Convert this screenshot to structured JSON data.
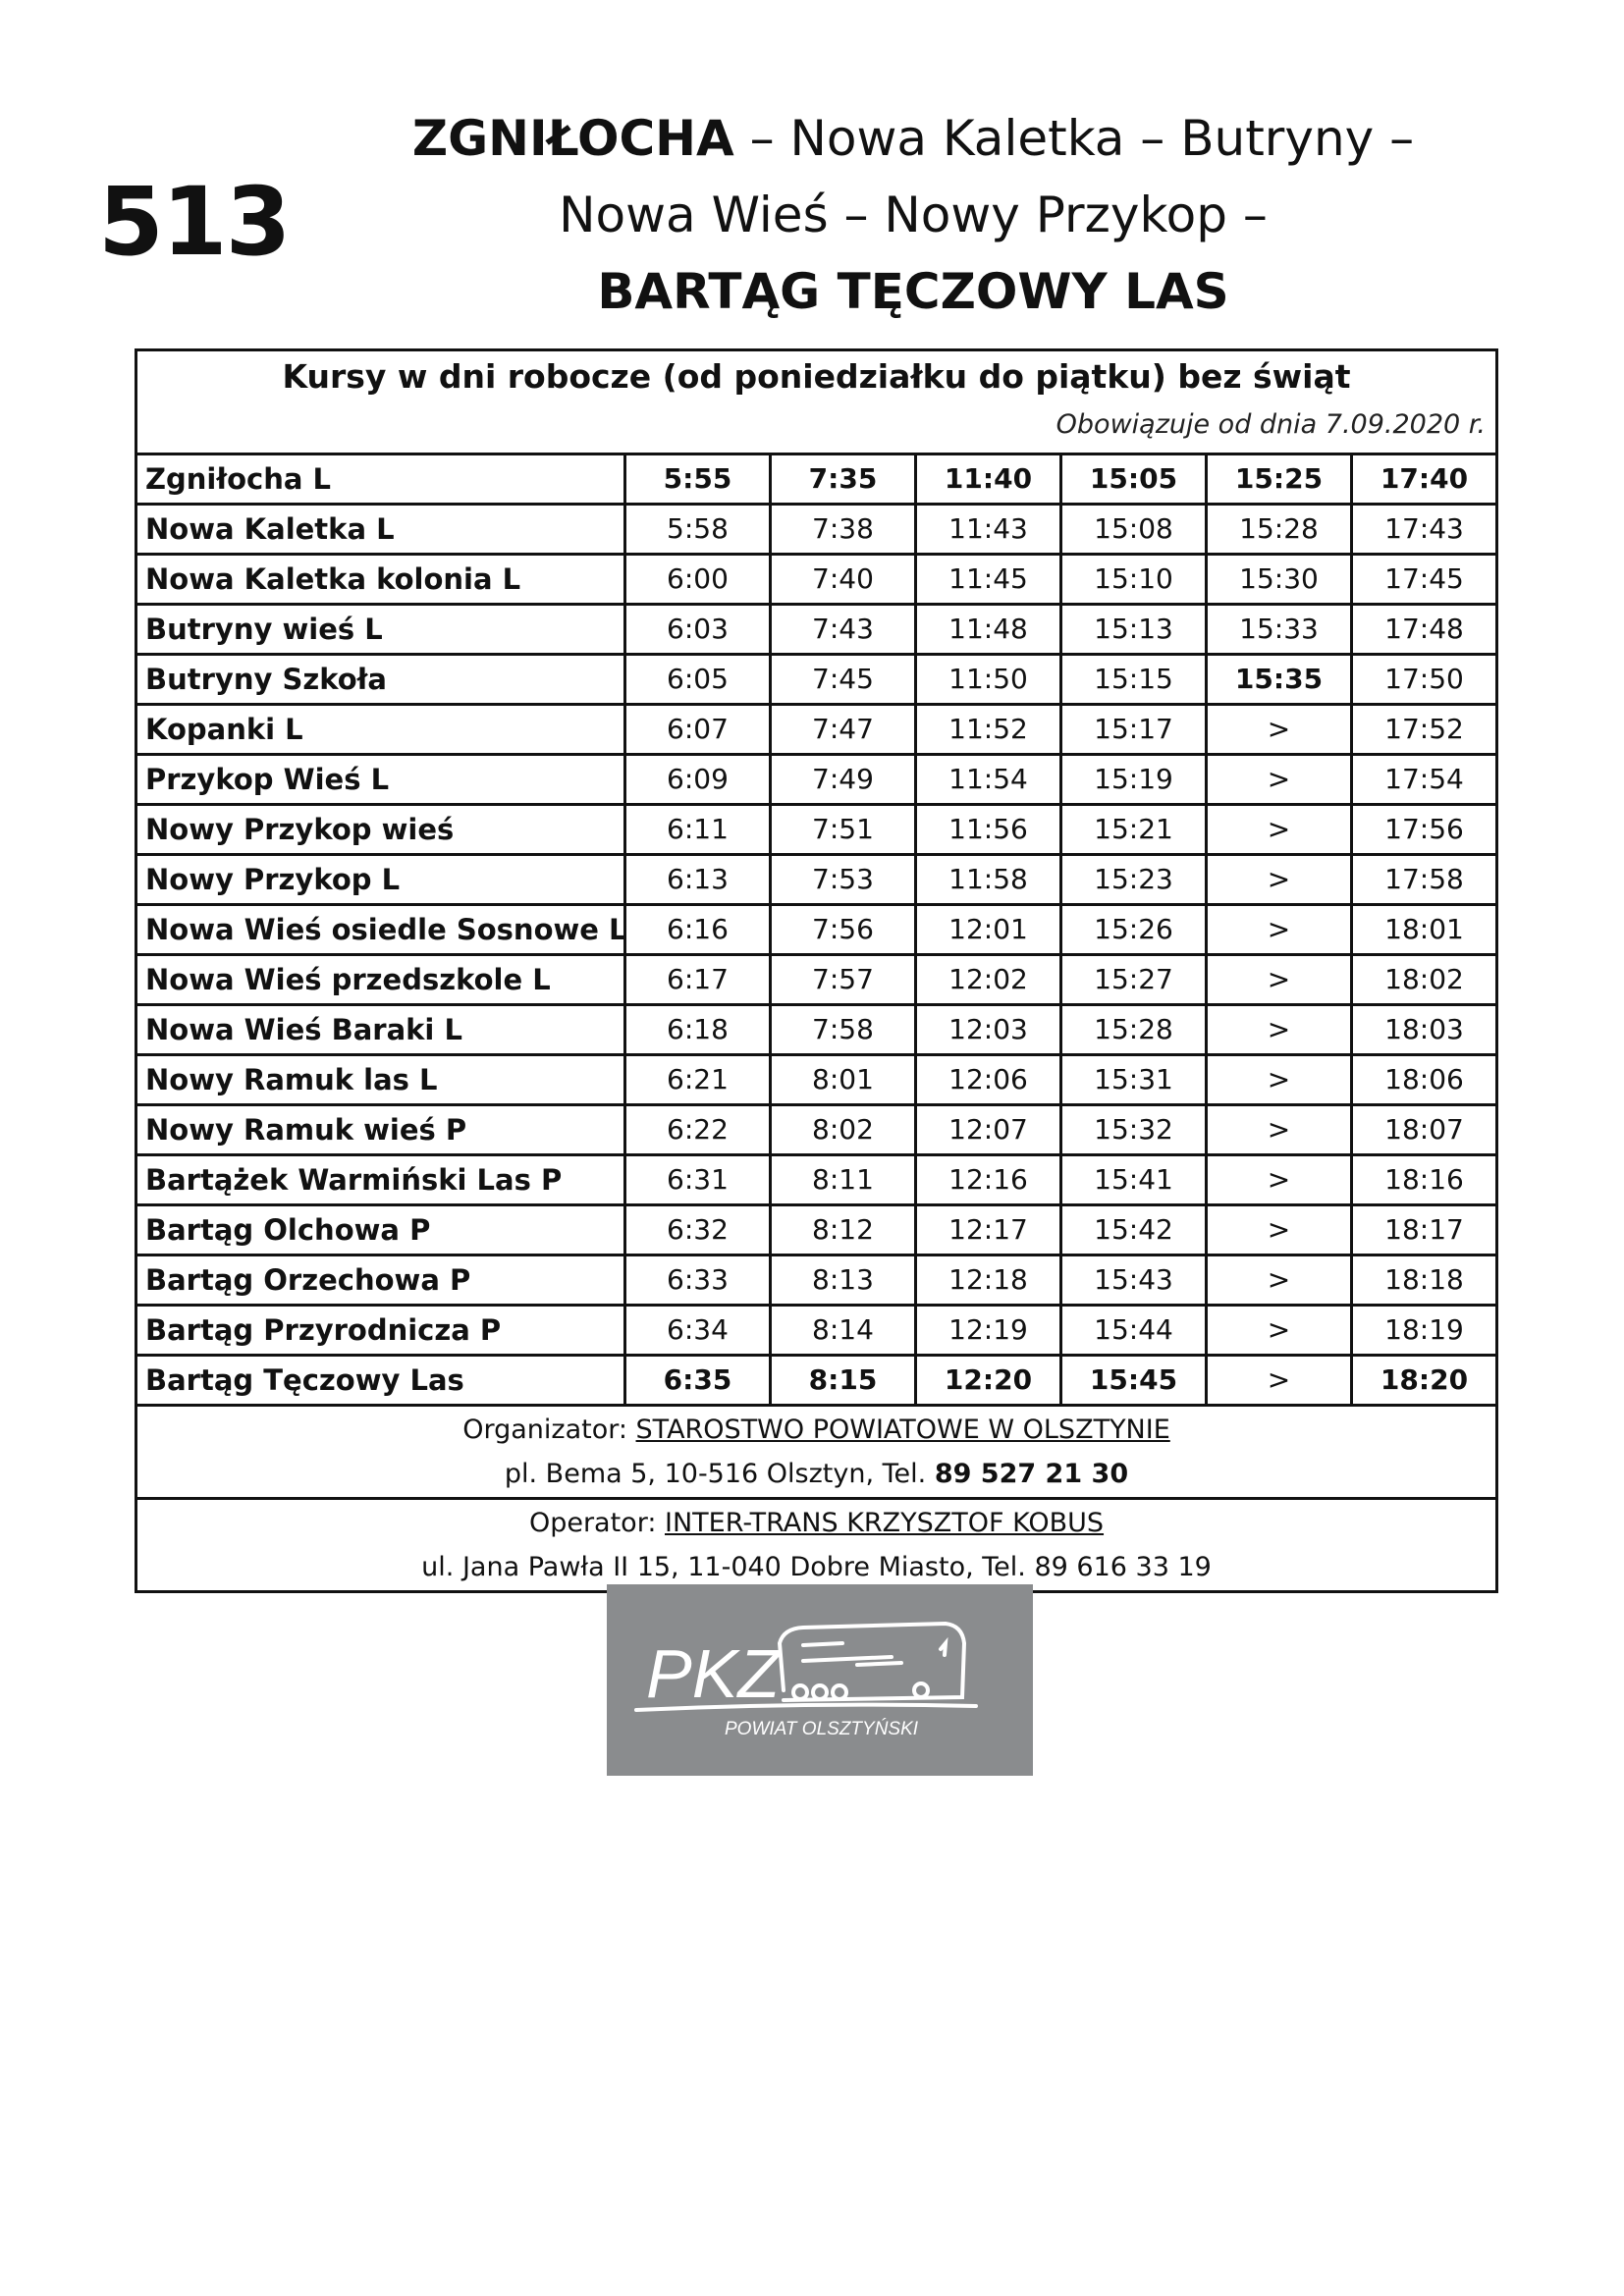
{
  "route_number": "513",
  "title": {
    "line1_bold": "ZGNIŁOCHA",
    "line1_rest": " – Nowa Kaletka – Butryny –",
    "line2": "Nowa Wieś – Nowy Przykop –",
    "line3": "BARTĄG TĘCZOWY LAS"
  },
  "table": {
    "heading": "Kursy w dni robocze (od poniedziałku do piątku) bez świąt",
    "valid_from": "Obowiązuje od dnia 7.09.2020 r.",
    "rows": [
      {
        "stop": "Zgniłocha L",
        "times": [
          "5:55",
          "7:35",
          "11:40",
          "15:05",
          "15:25",
          "17:40"
        ],
        "bold": [
          1,
          1,
          1,
          1,
          1,
          1
        ]
      },
      {
        "stop": "Nowa Kaletka L",
        "times": [
          "5:58",
          "7:38",
          "11:43",
          "15:08",
          "15:28",
          "17:43"
        ],
        "bold": [
          0,
          0,
          0,
          0,
          0,
          0
        ]
      },
      {
        "stop": "Nowa Kaletka kolonia L",
        "times": [
          "6:00",
          "7:40",
          "11:45",
          "15:10",
          "15:30",
          "17:45"
        ],
        "bold": [
          0,
          0,
          0,
          0,
          0,
          0
        ]
      },
      {
        "stop": "Butryny wieś L",
        "times": [
          "6:03",
          "7:43",
          "11:48",
          "15:13",
          "15:33",
          "17:48"
        ],
        "bold": [
          0,
          0,
          0,
          0,
          0,
          0
        ]
      },
      {
        "stop": "Butryny Szkoła",
        "times": [
          "6:05",
          "7:45",
          "11:50",
          "15:15",
          "15:35",
          "17:50"
        ],
        "bold": [
          0,
          0,
          0,
          0,
          1,
          0
        ]
      },
      {
        "stop": "Kopanki L",
        "times": [
          "6:07",
          "7:47",
          "11:52",
          "15:17",
          ">",
          "17:52"
        ],
        "bold": [
          0,
          0,
          0,
          0,
          0,
          0
        ]
      },
      {
        "stop": "Przykop Wieś L",
        "times": [
          "6:09",
          "7:49",
          "11:54",
          "15:19",
          ">",
          "17:54"
        ],
        "bold": [
          0,
          0,
          0,
          0,
          0,
          0
        ]
      },
      {
        "stop": "Nowy Przykop wieś",
        "times": [
          "6:11",
          "7:51",
          "11:56",
          "15:21",
          ">",
          "17:56"
        ],
        "bold": [
          0,
          0,
          0,
          0,
          0,
          0
        ]
      },
      {
        "stop": "Nowy Przykop  L",
        "times": [
          "6:13",
          "7:53",
          "11:58",
          "15:23",
          ">",
          "17:58"
        ],
        "bold": [
          0,
          0,
          0,
          0,
          0,
          0
        ]
      },
      {
        "stop": "Nowa Wieś osiedle Sosnowe L",
        "times": [
          "6:16",
          "7:56",
          "12:01",
          "15:26",
          ">",
          "18:01"
        ],
        "bold": [
          0,
          0,
          0,
          0,
          0,
          0
        ]
      },
      {
        "stop": "Nowa Wieś przedszkole L",
        "times": [
          "6:17",
          "7:57",
          "12:02",
          "15:27",
          ">",
          "18:02"
        ],
        "bold": [
          0,
          0,
          0,
          0,
          0,
          0
        ]
      },
      {
        "stop": "Nowa Wieś Baraki L",
        "times": [
          "6:18",
          "7:58",
          "12:03",
          "15:28",
          ">",
          "18:03"
        ],
        "bold": [
          0,
          0,
          0,
          0,
          0,
          0
        ]
      },
      {
        "stop": "Nowy Ramuk las L",
        "times": [
          "6:21",
          "8:01",
          "12:06",
          "15:31",
          ">",
          "18:06"
        ],
        "bold": [
          0,
          0,
          0,
          0,
          0,
          0
        ]
      },
      {
        "stop": "Nowy Ramuk wieś P",
        "times": [
          "6:22",
          "8:02",
          "12:07",
          "15:32",
          ">",
          "18:07"
        ],
        "bold": [
          0,
          0,
          0,
          0,
          0,
          0
        ]
      },
      {
        "stop": "Bartążek Warmiński Las P",
        "times": [
          "6:31",
          "8:11",
          "12:16",
          "15:41",
          ">",
          "18:16"
        ],
        "bold": [
          0,
          0,
          0,
          0,
          0,
          0
        ]
      },
      {
        "stop": "Bartąg Olchowa P",
        "times": [
          "6:32",
          "8:12",
          "12:17",
          "15:42",
          ">",
          "18:17"
        ],
        "bold": [
          0,
          0,
          0,
          0,
          0,
          0
        ]
      },
      {
        "stop": "Bartąg Orzechowa P",
        "times": [
          "6:33",
          "8:13",
          "12:18",
          "15:43",
          ">",
          "18:18"
        ],
        "bold": [
          0,
          0,
          0,
          0,
          0,
          0
        ]
      },
      {
        "stop": "Bartąg Przyrodnicza P",
        "times": [
          "6:34",
          "8:14",
          "12:19",
          "15:44",
          ">",
          "18:19"
        ],
        "bold": [
          0,
          0,
          0,
          0,
          0,
          0
        ]
      },
      {
        "stop": "Bartąg Tęczowy Las",
        "times": [
          "6:35",
          "8:15",
          "12:20",
          "15:45",
          ">",
          "18:20"
        ],
        "bold": [
          1,
          1,
          1,
          1,
          0,
          1
        ]
      }
    ]
  },
  "organizer": {
    "label": "Organizator: ",
    "name": "STAROSTWO POWIATOWE W OLSZTYNIE",
    "address": "pl. Bema 5, 10-516 Olsztyn, Tel. ",
    "phone": "89 527 21 30"
  },
  "operator": {
    "label": "Operator: ",
    "name": "INTER-TRANS KRZYSZTOF KOBUS",
    "address": "ul. Jana Pawła II 15, 11-040 Dobre Miasto, Tel. 89 616 33 19"
  },
  "logo": {
    "text": "PKZ",
    "subtitle": "POWIAT OLSZTYŃSKI",
    "background": "#8a8c8e"
  }
}
